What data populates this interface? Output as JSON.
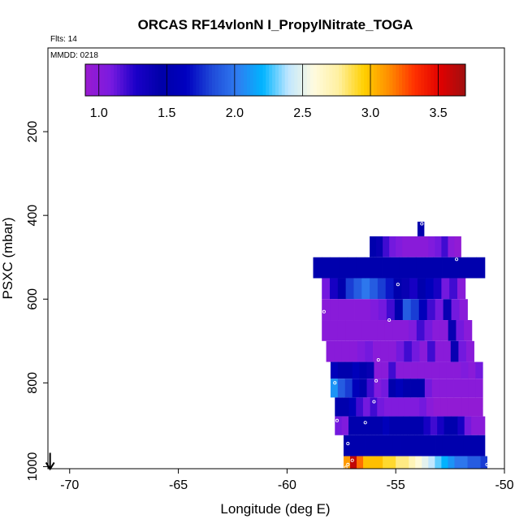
{
  "chart_data": {
    "type": "heatmap",
    "title": "ORCAS RF14vlonN I_PropylNitrate_TOGA",
    "annotation_flights": "Flts: 14",
    "annotation_date": "MMDD: 0218",
    "xlabel": "Longitude (deg E)",
    "ylabel": "PSXC (mbar)",
    "xlim": [
      -71,
      -50
    ],
    "ylim": [
      1000,
      0
    ],
    "x_ticks": [
      -70,
      -65,
      -60,
      -55,
      -50
    ],
    "x_tick_labels": [
      "-70",
      "-65",
      "-60",
      "-55",
      "-50"
    ],
    "y_ticks": [
      200,
      400,
      600,
      800,
      1000
    ],
    "y_tick_labels": [
      "200",
      "400",
      "600",
      "800",
      "1000"
    ],
    "colorbar": {
      "range": [
        0.9,
        3.7
      ],
      "ticks": [
        1.0,
        1.5,
        2.0,
        2.5,
        3.0,
        3.5
      ],
      "tick_labels": [
        "1.0",
        "1.5",
        "2.0",
        "2.5",
        "3.0",
        "3.5"
      ],
      "colors": [
        "#9a1bd0",
        "#7a1be0",
        "#1a00c8",
        "#0000a8",
        "#0000c0",
        "#1f4ad8",
        "#2f7cf0",
        "#00b4ff",
        "#bfe6ff",
        "#fffbe0",
        "#fff0a0",
        "#ffd000",
        "#ff8c00",
        "#ff3000",
        "#e00000",
        "#a01010"
      ]
    },
    "profile_bands": [
      {
        "p_top": 415,
        "p_bot": 450,
        "x_start": -54.0,
        "x_end": -53.7,
        "values": [
          1.5
        ]
      },
      {
        "p_top": 450,
        "p_bot": 500,
        "x_start": -56.2,
        "x_end": -52.0,
        "values": [
          1.5,
          1.4,
          1.2,
          1.1,
          1.05,
          1.0,
          1.0,
          1.0,
          1.0,
          1.05,
          1.1,
          1.2,
          1.0,
          0.95
        ]
      },
      {
        "p_top": 500,
        "p_bot": 550,
        "x_start": -58.8,
        "x_end": -50.9,
        "values": [
          1.5,
          1.5,
          1.5,
          1.5,
          1.5,
          1.5,
          1.5,
          1.5,
          1.5,
          1.5,
          1.5,
          1.5,
          1.5,
          1.5,
          1.5,
          1.5,
          1.5,
          1.5,
          1.5,
          1.5
        ]
      },
      {
        "p_top": 550,
        "p_bot": 600,
        "x_start": -58.4,
        "x_end": -51.8,
        "values": [
          1.1,
          1.3,
          1.5,
          1.8,
          1.9,
          2.0,
          1.9,
          1.8,
          1.7,
          1.5,
          1.4,
          1.3,
          1.5,
          1.6,
          1.3,
          1.1,
          1.2,
          1.0
        ]
      },
      {
        "p_top": 600,
        "p_bot": 650,
        "x_start": -58.4,
        "x_end": -51.7,
        "values": [
          1.0,
          1.0,
          1.0,
          1.0,
          1.0,
          1.0,
          1.05,
          1.1,
          1.2,
          1.5,
          1.9,
          1.8,
          1.6,
          1.2,
          1.1,
          1.4,
          1.1,
          1.0
        ]
      },
      {
        "p_top": 650,
        "p_bot": 700,
        "x_start": -58.4,
        "x_end": -51.5,
        "values": [
          1.0,
          1.0,
          1.0,
          1.0,
          1.0,
          1.0,
          1.0,
          1.0,
          1.0,
          1.0,
          1.0,
          1.05,
          1.2,
          1.1,
          1.0,
          1.0,
          1.4,
          1.1,
          1.0
        ]
      },
      {
        "p_top": 700,
        "p_bot": 750,
        "x_start": -58.2,
        "x_end": -51.4,
        "values": [
          1.0,
          1.0,
          1.0,
          1.0,
          1.05,
          1.1,
          1.0,
          1.0,
          1.0,
          1.1,
          1.2,
          1.1,
          1.0,
          1.2,
          1.0,
          1.0,
          1.4,
          1.1,
          1.0
        ]
      },
      {
        "p_top": 750,
        "p_bot": 790,
        "x_start": -58.0,
        "x_end": -51.0,
        "values": [
          1.6,
          1.5,
          1.5,
          1.6,
          1.5,
          1.4,
          1.0,
          1.0,
          1.2,
          1.0,
          1.0,
          1.0,
          1.0,
          1.0,
          1.0,
          1.0,
          1.0,
          1.0,
          1.05,
          1.0,
          1.1
        ]
      },
      {
        "p_top": 790,
        "p_bot": 835,
        "x_start": -58.0,
        "x_end": -51.0,
        "values": [
          2.1,
          1.9,
          1.8,
          1.6,
          1.5,
          1.2,
          1.05,
          1.1,
          1.5,
          1.6,
          1.5,
          1.5,
          1.5,
          1.1,
          1.0,
          1.0,
          1.0,
          1.0,
          1.0,
          1.0,
          1.0
        ]
      },
      {
        "p_top": 835,
        "p_bot": 880,
        "x_start": -57.8,
        "x_end": -51.0,
        "values": [
          1.5,
          1.5,
          1.6,
          1.2,
          1.1,
          1.2,
          1.1,
          1.05,
          1.05,
          1.05,
          1.05,
          1.05,
          1.1,
          1.0,
          0.95,
          0.95,
          0.95,
          0.95,
          0.95,
          0.95,
          0.95
        ]
      },
      {
        "p_top": 880,
        "p_bot": 925,
        "x_start": -57.8,
        "x_end": -50.9,
        "values": [
          1.1,
          1.05,
          1.5,
          1.5,
          1.5,
          1.5,
          1.5,
          1.6,
          1.5,
          1.5,
          1.5,
          1.5,
          1.5,
          1.3,
          1.2,
          1.3,
          1.5,
          1.5,
          1.3,
          1.1,
          1.0,
          1.0
        ]
      },
      {
        "p_top": 925,
        "p_bot": 975,
        "x_start": -57.4,
        "x_end": -50.9,
        "values": [
          1.5,
          1.5,
          1.5,
          1.5,
          1.5,
          1.5,
          1.5,
          1.5,
          1.5,
          1.5,
          1.5,
          1.5,
          1.5,
          1.5,
          1.5,
          1.5,
          1.5,
          1.5,
          1.5,
          1.5
        ]
      },
      {
        "p_top": 975,
        "p_bot": 1005,
        "x_start": -57.4,
        "x_end": -50.8,
        "values": [
          3.1,
          3.6,
          3.2,
          3.0,
          3.0,
          3.0,
          2.9,
          2.9,
          2.8,
          2.8,
          2.7,
          2.6,
          2.5,
          2.4,
          2.3,
          2.2,
          2.1,
          2.0,
          2.0,
          1.9,
          1.9,
          1.8
        ]
      }
    ],
    "sample_points": [
      {
        "lon": -53.8,
        "p": 420
      },
      {
        "lon": -52.2,
        "p": 505
      },
      {
        "lon": -58.6,
        "p": 560
      },
      {
        "lon": -54.9,
        "p": 565
      },
      {
        "lon": -58.3,
        "p": 630
      },
      {
        "lon": -55.3,
        "p": 650
      },
      {
        "lon": -55.8,
        "p": 745
      },
      {
        "lon": -50.9,
        "p": 760
      },
      {
        "lon": -57.8,
        "p": 800
      },
      {
        "lon": -55.9,
        "p": 795
      },
      {
        "lon": -56.0,
        "p": 845
      },
      {
        "lon": -50.9,
        "p": 860
      },
      {
        "lon": -57.7,
        "p": 890
      },
      {
        "lon": -56.4,
        "p": 895
      },
      {
        "lon": -57.2,
        "p": 945
      },
      {
        "lon": -50.8,
        "p": 970
      },
      {
        "lon": -50.8,
        "p": 995
      },
      {
        "lon": -57.2,
        "p": 995
      },
      {
        "lon": -57.0,
        "p": 985
      },
      {
        "lon": -57.3,
        "p": 1002
      }
    ],
    "ground_marker": {
      "lon": -70.9,
      "p": 1000
    }
  }
}
